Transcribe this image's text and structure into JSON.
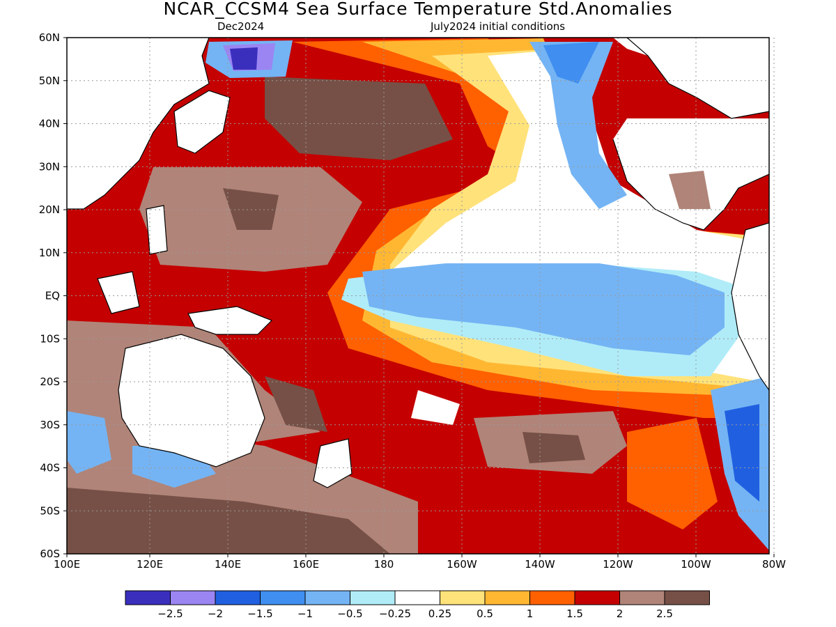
{
  "header": {
    "title": "NCAR_CCSM4 Sea Surface Temperature Std.Anomalies",
    "target": "Dec2024",
    "initial": "July2024 initial conditions"
  },
  "map": {
    "lat_labels": [
      "60N",
      "50N",
      "40N",
      "30N",
      "20N",
      "10N",
      "EQ",
      "10S",
      "20S",
      "30S",
      "40S",
      "50S",
      "60S"
    ],
    "lon_labels": [
      "100E",
      "120E",
      "140E",
      "160E",
      "180",
      "160W",
      "140W",
      "120W",
      "100W",
      "80W"
    ]
  },
  "colorbar": {
    "labels": [
      "−2.5",
      "−2",
      "−1.5",
      "−1",
      "−0.5",
      "−0.25",
      "0.25",
      "0.5",
      "1",
      "1.5",
      "2",
      "2.5"
    ],
    "colors": [
      "#3a2fbd",
      "#9b85f2",
      "#2060e0",
      "#3f8ef0",
      "#74b4f4",
      "#b0ecf8",
      "#ffffff",
      "#ffe27a",
      "#ffb732",
      "#ff6000",
      "#c40000",
      "#b08478",
      "#765046"
    ]
  },
  "colors": {
    "land": "#ffffff",
    "coast": "#000000",
    "grid": "#9a9a9a"
  }
}
